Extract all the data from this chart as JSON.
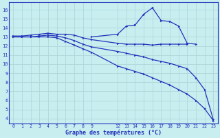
{
  "background_color": "#c8eef0",
  "grid_color": "#b0d8da",
  "line_color": "#2233bb",
  "xlabel": "Graphe des températures (°C)",
  "ylim": [
    3.5,
    16.8
  ],
  "xlim": [
    -0.5,
    23.5
  ],
  "yticks": [
    4,
    5,
    6,
    7,
    8,
    9,
    10,
    11,
    12,
    13,
    14,
    15,
    16
  ],
  "xticks": [
    0,
    1,
    2,
    3,
    4,
    5,
    6,
    7,
    8,
    9,
    12,
    13,
    14,
    15,
    16,
    17,
    18,
    19,
    20,
    21,
    22,
    23
  ],
  "series1_x": [
    0,
    1,
    2,
    3,
    4,
    5,
    6,
    7,
    8,
    9,
    12,
    13,
    14,
    15,
    16,
    17,
    18,
    19,
    20
  ],
  "series1_y": [
    13.1,
    13.1,
    13.2,
    13.3,
    13.4,
    13.3,
    13.3,
    13.2,
    12.9,
    12.7,
    12.3,
    12.2,
    12.2,
    12.2,
    12.1,
    12.2,
    12.2,
    12.2,
    12.2
  ],
  "series2_x": [
    0,
    1,
    2,
    3,
    4,
    5,
    6,
    7,
    8,
    9,
    12,
    13,
    14,
    15,
    16,
    17,
    18,
    19,
    20,
    21,
    22,
    23
  ],
  "series2_y": [
    13.0,
    13.0,
    13.0,
    13.1,
    13.2,
    13.1,
    12.9,
    12.6,
    12.2,
    11.9,
    11.4,
    11.2,
    11.0,
    10.8,
    10.5,
    10.3,
    10.1,
    9.8,
    9.5,
    8.5,
    7.2,
    3.9
  ],
  "series3_x": [
    0,
    1,
    2,
    3,
    4,
    5,
    6,
    7,
    8,
    9,
    12,
    13,
    14,
    15,
    16,
    17,
    18,
    19,
    20,
    21,
    22,
    23
  ],
  "series3_y": [
    13.0,
    13.0,
    13.0,
    13.0,
    13.0,
    12.9,
    12.5,
    12.1,
    11.7,
    11.3,
    9.8,
    9.5,
    9.2,
    8.9,
    8.5,
    8.1,
    7.7,
    7.2,
    6.7,
    6.0,
    5.1,
    3.8
  ],
  "series4_x": [
    9,
    12,
    13,
    14,
    15,
    16,
    17,
    18,
    19,
    20,
    21
  ],
  "series4_y": [
    13.0,
    13.3,
    14.2,
    14.3,
    15.5,
    16.2,
    14.8,
    14.7,
    14.2,
    12.3,
    12.2
  ]
}
